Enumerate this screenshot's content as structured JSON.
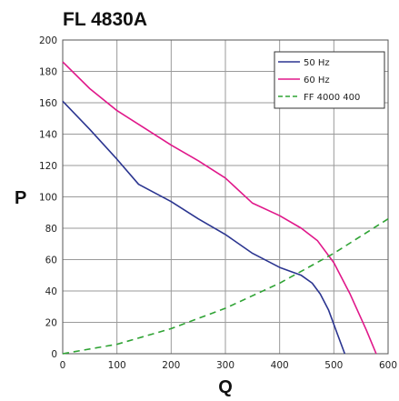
{
  "chart_data": {
    "type": "line",
    "title": "FL 4830A",
    "xlabel": "Q",
    "ylabel": "P",
    "xlim": [
      0,
      600
    ],
    "ylim": [
      0,
      200
    ],
    "x_ticks": [
      0,
      100,
      200,
      300,
      400,
      500,
      600
    ],
    "y_ticks": [
      0,
      20,
      40,
      60,
      80,
      100,
      120,
      140,
      160,
      180,
      200
    ],
    "grid": true,
    "legend_position": "top-right",
    "series": [
      {
        "name": "50 Hz",
        "color": "#2b3590",
        "dash": "solid",
        "points": [
          [
            0,
            161
          ],
          [
            50,
            143
          ],
          [
            100,
            124
          ],
          [
            140,
            108
          ],
          [
            200,
            97
          ],
          [
            250,
            86
          ],
          [
            300,
            76
          ],
          [
            350,
            64
          ],
          [
            400,
            55
          ],
          [
            440,
            50
          ],
          [
            460,
            45
          ],
          [
            475,
            38
          ],
          [
            490,
            28
          ],
          [
            505,
            14
          ],
          [
            520,
            0
          ]
        ]
      },
      {
        "name": "60 Hz",
        "color": "#e0188a",
        "dash": "solid",
        "points": [
          [
            0,
            186
          ],
          [
            50,
            169
          ],
          [
            100,
            155
          ],
          [
            150,
            144
          ],
          [
            200,
            133
          ],
          [
            250,
            123
          ],
          [
            300,
            112
          ],
          [
            350,
            96
          ],
          [
            400,
            88
          ],
          [
            440,
            80
          ],
          [
            470,
            72
          ],
          [
            500,
            58
          ],
          [
            530,
            38
          ],
          [
            560,
            15
          ],
          [
            578,
            0
          ]
        ]
      },
      {
        "name": "FF 4000 400",
        "color": "#2fa334",
        "dash": "dashed",
        "points": [
          [
            0,
            0
          ],
          [
            100,
            6
          ],
          [
            200,
            16
          ],
          [
            300,
            29
          ],
          [
            400,
            45
          ],
          [
            500,
            64
          ],
          [
            600,
            86
          ]
        ]
      }
    ]
  }
}
